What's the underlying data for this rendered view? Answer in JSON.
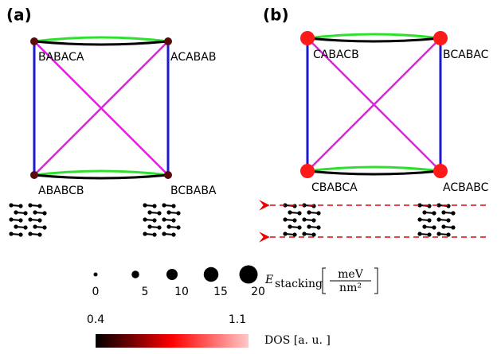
{
  "panels": [
    {
      "label": "(a)",
      "nodes": [
        "BABACA",
        "ACABAB",
        "ABABCB",
        "BCBABA"
      ]
    },
    {
      "label": "(b)",
      "nodes": [
        "CABACB",
        "BCABAC",
        "CBABCA",
        "ACBABC"
      ]
    }
  ],
  "size_legend": {
    "values": [
      0,
      5,
      10,
      15,
      20
    ],
    "label": {
      "symbol": "E",
      "subscript": "stacking",
      "numerator": "meV",
      "denominator": "nm²"
    }
  },
  "colorbar": {
    "ticks": [
      0.4,
      1.1
    ],
    "label": "DOS [a. u. ]"
  }
}
